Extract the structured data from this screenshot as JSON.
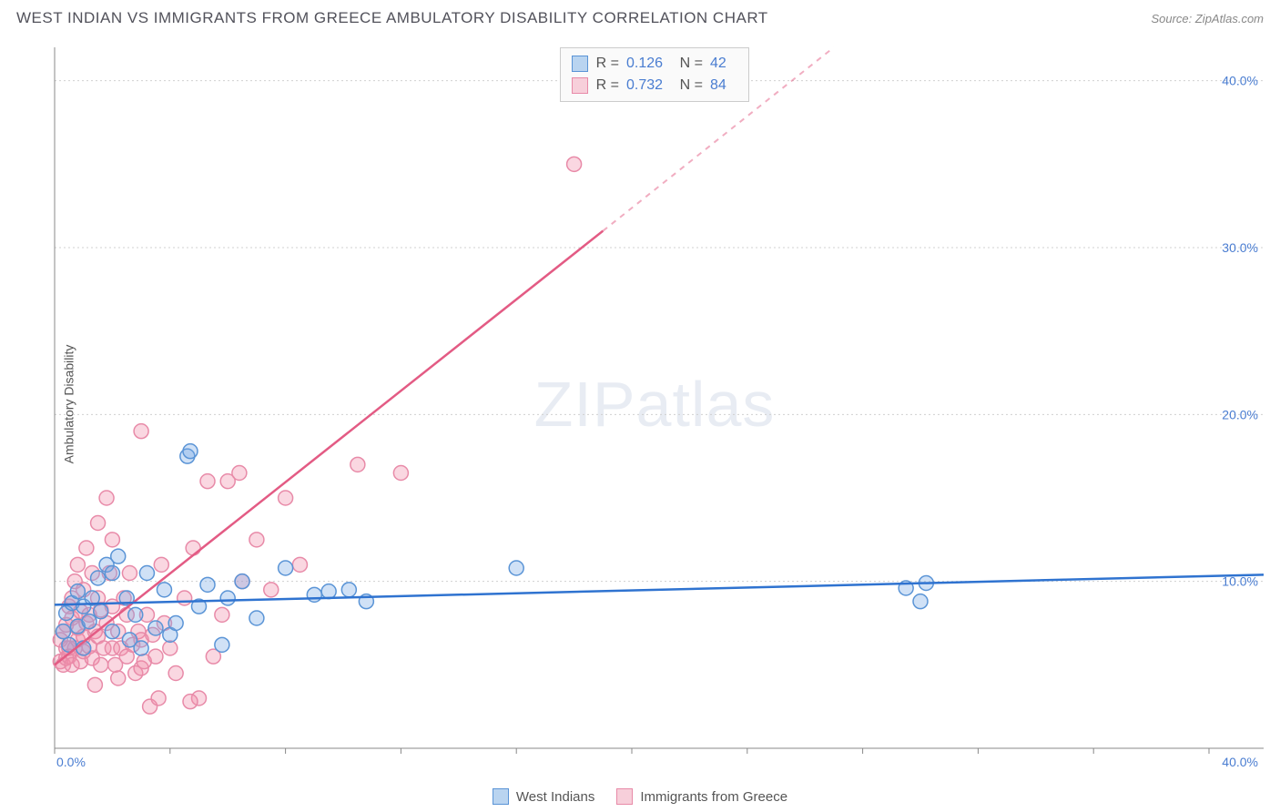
{
  "header": {
    "title": "WEST INDIAN VS IMMIGRANTS FROM GREECE AMBULATORY DISABILITY CORRELATION CHART",
    "source": "Source: ZipAtlas.com"
  },
  "y_axis_label": "Ambulatory Disability",
  "watermark": {
    "zip": "ZIP",
    "atlas": "atlas"
  },
  "chart": {
    "type": "scatter",
    "background_color": "#ffffff",
    "grid_color": "#d0d0d0",
    "axis_color": "#888888",
    "tick_label_color": "#4a7dd1",
    "x_range": [
      0,
      40
    ],
    "y_range": [
      0,
      42
    ],
    "x_ticks": [
      {
        "value": 0,
        "label": "0.0%"
      },
      {
        "value": 40,
        "label": "40.0%"
      }
    ],
    "y_ticks": [
      {
        "value": 10,
        "label": "10.0%"
      },
      {
        "value": 20,
        "label": "20.0%"
      },
      {
        "value": 30,
        "label": "30.0%"
      },
      {
        "value": 40,
        "label": "40.0%"
      }
    ],
    "x_minor_tick_step": 4,
    "marker_radius": 8,
    "marker_stroke_width": 1.5,
    "line_width": 2.5,
    "series": {
      "west_indians": {
        "label": "West Indians",
        "R_label": "R =",
        "R_value": "0.126",
        "N_label": "N =",
        "N_value": "42",
        "fill_color": "rgba(120,170,230,0.35)",
        "stroke_color": "#5a94d6",
        "line_color": "#2f73d0",
        "swatch_fill": "#b9d4f0",
        "swatch_border": "#5a94d6",
        "trend": {
          "x1": 0,
          "y1": 8.6,
          "x2": 40,
          "y2": 10.4
        },
        "points": [
          [
            0.3,
            7.0
          ],
          [
            0.4,
            8.1
          ],
          [
            0.5,
            6.2
          ],
          [
            0.6,
            8.7
          ],
          [
            0.8,
            7.3
          ],
          [
            0.8,
            9.4
          ],
          [
            1.0,
            8.5
          ],
          [
            1.0,
            6.0
          ],
          [
            1.2,
            7.6
          ],
          [
            1.3,
            9.0
          ],
          [
            1.5,
            10.2
          ],
          [
            1.6,
            8.2
          ],
          [
            1.8,
            11.0
          ],
          [
            2.0,
            7.0
          ],
          [
            2.0,
            10.5
          ],
          [
            2.2,
            11.5
          ],
          [
            2.5,
            9.0
          ],
          [
            2.6,
            6.5
          ],
          [
            2.8,
            8.0
          ],
          [
            3.0,
            6.0
          ],
          [
            3.2,
            10.5
          ],
          [
            3.5,
            7.2
          ],
          [
            3.8,
            9.5
          ],
          [
            4.0,
            6.8
          ],
          [
            4.2,
            7.5
          ],
          [
            4.6,
            17.5
          ],
          [
            4.7,
            17.8
          ],
          [
            5.0,
            8.5
          ],
          [
            5.3,
            9.8
          ],
          [
            5.8,
            6.2
          ],
          [
            6.0,
            9.0
          ],
          [
            6.5,
            10.0
          ],
          [
            7.0,
            7.8
          ],
          [
            8.0,
            10.8
          ],
          [
            9.0,
            9.2
          ],
          [
            9.5,
            9.4
          ],
          [
            10.2,
            9.5
          ],
          [
            10.8,
            8.8
          ],
          [
            16.0,
            10.8
          ],
          [
            29.5,
            9.6
          ],
          [
            30.2,
            9.9
          ],
          [
            30.0,
            8.8
          ]
        ]
      },
      "greece": {
        "label": "Immigrants from Greece",
        "R_label": "R =",
        "R_value": "0.732",
        "N_label": "N =",
        "N_value": "84",
        "fill_color": "rgba(240,140,170,0.35)",
        "stroke_color": "#e88aa8",
        "line_color": "#e35b84",
        "swatch_fill": "#f7cfda",
        "swatch_border": "#e88aa8",
        "trend_solid": {
          "x1": 0,
          "y1": 5.0,
          "x2": 19,
          "y2": 31.0
        },
        "trend_dashed": {
          "x1": 19,
          "y1": 31.0,
          "x2": 27,
          "y2": 42.0
        },
        "points": [
          [
            0.2,
            5.2
          ],
          [
            0.2,
            6.5
          ],
          [
            0.3,
            5.0
          ],
          [
            0.3,
            7.0
          ],
          [
            0.4,
            5.4
          ],
          [
            0.4,
            7.4
          ],
          [
            0.4,
            6.0
          ],
          [
            0.5,
            6.0
          ],
          [
            0.5,
            8.5
          ],
          [
            0.5,
            5.5
          ],
          [
            0.6,
            7.8
          ],
          [
            0.6,
            9.0
          ],
          [
            0.6,
            5.0
          ],
          [
            0.7,
            10.0
          ],
          [
            0.7,
            6.0
          ],
          [
            0.8,
            6.5
          ],
          [
            0.8,
            11.0
          ],
          [
            0.8,
            7.2
          ],
          [
            0.9,
            5.2
          ],
          [
            0.9,
            8.2
          ],
          [
            1.0,
            6.7
          ],
          [
            1.0,
            9.5
          ],
          [
            1.0,
            5.8
          ],
          [
            1.1,
            7.5
          ],
          [
            1.1,
            12.0
          ],
          [
            1.2,
            6.1
          ],
          [
            1.2,
            8.0
          ],
          [
            1.3,
            5.4
          ],
          [
            1.3,
            10.5
          ],
          [
            1.4,
            7.0
          ],
          [
            1.4,
            3.8
          ],
          [
            1.5,
            6.7
          ],
          [
            1.5,
            9.0
          ],
          [
            1.5,
            13.5
          ],
          [
            1.6,
            5.0
          ],
          [
            1.6,
            8.3
          ],
          [
            1.7,
            6.0
          ],
          [
            1.8,
            7.5
          ],
          [
            1.8,
            15.0
          ],
          [
            1.9,
            10.5
          ],
          [
            2.0,
            6.0
          ],
          [
            2.0,
            8.5
          ],
          [
            2.0,
            12.5
          ],
          [
            2.1,
            5.0
          ],
          [
            2.2,
            7.0
          ],
          [
            2.2,
            4.2
          ],
          [
            2.3,
            6.0
          ],
          [
            2.4,
            9.0
          ],
          [
            2.5,
            5.5
          ],
          [
            2.5,
            8.0
          ],
          [
            2.6,
            10.5
          ],
          [
            2.7,
            6.2
          ],
          [
            2.8,
            4.5
          ],
          [
            2.9,
            7.0
          ],
          [
            3.0,
            4.8
          ],
          [
            3.0,
            6.5
          ],
          [
            3.1,
            5.2
          ],
          [
            3.2,
            8.0
          ],
          [
            3.3,
            2.5
          ],
          [
            3.4,
            6.8
          ],
          [
            3.5,
            5.5
          ],
          [
            3.6,
            3.0
          ],
          [
            3.7,
            11.0
          ],
          [
            3.8,
            7.5
          ],
          [
            3.0,
            19.0
          ],
          [
            4.0,
            6.0
          ],
          [
            4.2,
            4.5
          ],
          [
            4.5,
            9.0
          ],
          [
            4.8,
            12.0
          ],
          [
            5.0,
            3.0
          ],
          [
            5.3,
            16.0
          ],
          [
            5.5,
            5.5
          ],
          [
            5.8,
            8.0
          ],
          [
            6.0,
            16.0
          ],
          [
            6.4,
            16.5
          ],
          [
            6.5,
            10.0
          ],
          [
            7.0,
            12.5
          ],
          [
            7.5,
            9.5
          ],
          [
            8.0,
            15.0
          ],
          [
            8.5,
            11.0
          ],
          [
            10.5,
            17.0
          ],
          [
            12.0,
            16.5
          ],
          [
            18.0,
            35.0
          ],
          [
            4.7,
            2.8
          ]
        ]
      }
    }
  },
  "bottom_legend": {
    "series1_label": "West Indians",
    "series2_label": "Immigrants from Greece"
  }
}
